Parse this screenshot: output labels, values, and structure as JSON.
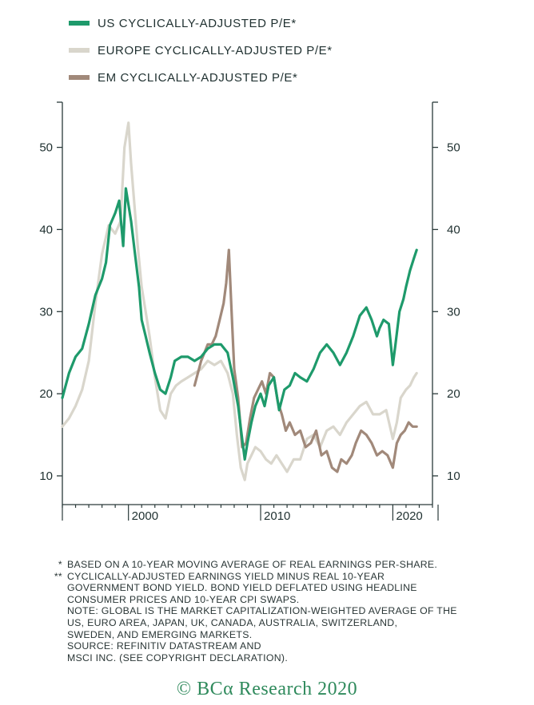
{
  "legend": [
    {
      "label": "US CYCLICALLY-ADJUSTED P/E*",
      "color": "#1e9a6b"
    },
    {
      "label": "EUROPE CYCLICALLY-ADJUSTED P/E*",
      "color": "#d9d6cc"
    },
    {
      "label": "EM CYCLICALLY-ADJUSTED P/E*",
      "color": "#a1897a"
    }
  ],
  "footnotes": [
    {
      "marker": "*",
      "text": "BASED ON A 10-YEAR MOVING AVERAGE OF REAL EARNINGS PER-SHARE."
    },
    {
      "marker": "**",
      "text": "CYCLICALLY-ADJUSTED EARNINGS YIELD MINUS REAL 10-YEAR\nGOVERNMENT BOND YIELD. BOND YIELD DEFLATED USING HEADLINE\nCONSUMER PRICES AND 10-YEAR CPI SWAPS.\nNOTE: GLOBAL IS THE MARKET CAPITALIZATION-WEIGHTED AVERAGE OF THE\nUS, EURO AREA, JAPAN, UK, CANADA, AUSTRALIA, SWITZERLAND,\nSWEDEN, AND EMERGING MARKETS.\nSOURCE: REFINITIV DATASTREAM AND\nMSCI INC. (SEE COPYRIGHT DECLARATION)."
    }
  ],
  "copyright": "© BCα Research 2020",
  "chart_data": {
    "type": "line",
    "title": "",
    "xlabel": "",
    "ylabel": "",
    "xlim": [
      1995.0,
      2023.0
    ],
    "ylim": [
      6.5,
      55.5
    ],
    "x_ticks": [
      2000,
      2010,
      2020
    ],
    "x_tick_labels": [
      "2000",
      "2010",
      "2020"
    ],
    "y_ticks": [
      10,
      20,
      30,
      40,
      50
    ],
    "y_tick_labels": [
      "10",
      "20",
      "30",
      "40",
      "50"
    ],
    "grid": false,
    "legend_position": "top-left",
    "series": [
      {
        "name": "US CYCLICALLY-ADJUSTED P/E*",
        "color": "#1e9a6b",
        "x": [
          1995.0,
          1995.5,
          1996.0,
          1996.5,
          1997.0,
          1997.5,
          1998.0,
          1998.3,
          1998.6,
          1999.0,
          1999.3,
          1999.6,
          1999.8,
          2000.0,
          2000.2,
          2000.5,
          2000.8,
          2001.0,
          2001.3,
          2001.6,
          2002.0,
          2002.4,
          2002.8,
          2003.2,
          2003.5,
          2004.0,
          2004.5,
          2005.0,
          2005.5,
          2006.0,
          2006.5,
          2007.0,
          2007.5,
          2007.9,
          2008.3,
          2008.6,
          2008.8,
          2009.0,
          2009.3,
          2009.6,
          2010.0,
          2010.3,
          2010.6,
          2011.0,
          2011.4,
          2011.8,
          2012.2,
          2012.6,
          2013.0,
          2013.5,
          2014.0,
          2014.5,
          2015.0,
          2015.5,
          2016.0,
          2016.5,
          2017.0,
          2017.5,
          2018.0,
          2018.4,
          2018.8,
          2019.0,
          2019.3,
          2019.7,
          2020.0,
          2020.2,
          2020.5,
          2020.8,
          2021.0,
          2021.3,
          2021.6,
          2021.8
        ],
        "values": [
          19.5,
          22.5,
          24.5,
          25.5,
          28.5,
          32.0,
          34.0,
          36.0,
          40.5,
          42.0,
          43.5,
          38.0,
          45.0,
          43.0,
          41.0,
          37.0,
          33.0,
          29.0,
          27.0,
          25.0,
          22.5,
          20.5,
          20.0,
          22.0,
          24.0,
          24.5,
          24.5,
          24.0,
          24.5,
          25.5,
          26.0,
          26.0,
          25.0,
          22.0,
          18.5,
          14.5,
          12.0,
          14.0,
          16.5,
          18.5,
          20.0,
          18.5,
          21.0,
          22.0,
          18.0,
          20.5,
          21.0,
          22.5,
          22.0,
          21.5,
          23.0,
          25.0,
          26.0,
          25.0,
          23.5,
          25.0,
          27.0,
          29.5,
          30.5,
          29.0,
          27.0,
          28.0,
          29.0,
          28.5,
          23.5,
          26.0,
          30.0,
          31.5,
          33.0,
          35.0,
          36.5,
          37.5
        ]
      },
      {
        "name": "EUROPE CYCLICALLY-ADJUSTED P/E*",
        "color": "#d9d6cc",
        "x": [
          1995.0,
          1995.5,
          1996.0,
          1996.5,
          1997.0,
          1997.5,
          1998.0,
          1998.5,
          1999.0,
          1999.4,
          1999.7,
          2000.0,
          2000.2,
          2000.4,
          2000.7,
          2001.0,
          2001.3,
          2001.6,
          2002.0,
          2002.4,
          2002.8,
          2003.2,
          2003.6,
          2004.0,
          2004.5,
          2005.0,
          2005.5,
          2006.0,
          2006.5,
          2007.0,
          2007.5,
          2007.9,
          2008.2,
          2008.5,
          2008.8,
          2009.0,
          2009.3,
          2009.6,
          2010.0,
          2010.4,
          2010.8,
          2011.2,
          2011.6,
          2012.0,
          2012.5,
          2013.0,
          2013.5,
          2014.0,
          2014.5,
          2015.0,
          2015.5,
          2016.0,
          2016.5,
          2017.0,
          2017.5,
          2018.0,
          2018.5,
          2019.0,
          2019.5,
          2020.0,
          2020.3,
          2020.6,
          2021.0,
          2021.3,
          2021.6,
          2021.8
        ],
        "values": [
          16.0,
          17.0,
          18.5,
          20.5,
          24.0,
          31.0,
          37.0,
          40.5,
          39.5,
          41.0,
          50.0,
          53.0,
          48.0,
          44.0,
          38.0,
          33.0,
          30.0,
          27.0,
          22.0,
          18.0,
          17.0,
          20.0,
          21.0,
          21.5,
          22.0,
          22.5,
          23.0,
          24.0,
          23.5,
          24.0,
          22.5,
          20.0,
          15.0,
          11.0,
          9.5,
          11.5,
          12.5,
          13.5,
          13.0,
          12.0,
          11.5,
          12.5,
          11.5,
          10.5,
          12.0,
          12.0,
          14.5,
          15.0,
          13.5,
          15.5,
          16.0,
          15.0,
          16.5,
          17.5,
          18.5,
          19.0,
          17.5,
          17.5,
          18.0,
          14.5,
          16.5,
          19.5,
          20.5,
          21.0,
          22.0,
          22.5
        ]
      },
      {
        "name": "EM CYCLICALLY-ADJUSTED P/E*",
        "color": "#a1897a",
        "x": [
          2005.0,
          2005.5,
          2006.0,
          2006.3,
          2006.6,
          2006.9,
          2007.2,
          2007.4,
          2007.6,
          2007.8,
          2008.0,
          2008.3,
          2008.6,
          2008.9,
          2009.2,
          2009.5,
          2009.8,
          2010.1,
          2010.4,
          2010.7,
          2011.0,
          2011.3,
          2011.6,
          2011.9,
          2012.2,
          2012.6,
          2013.0,
          2013.4,
          2013.8,
          2014.2,
          2014.6,
          2015.0,
          2015.4,
          2015.8,
          2016.1,
          2016.5,
          2016.9,
          2017.2,
          2017.6,
          2018.0,
          2018.4,
          2018.8,
          2019.2,
          2019.6,
          2020.0,
          2020.3,
          2020.6,
          2020.9,
          2021.2,
          2021.5,
          2021.8
        ],
        "values": [
          21.0,
          24.0,
          26.0,
          26.0,
          27.0,
          29.0,
          31.0,
          33.5,
          37.5,
          30.0,
          23.0,
          19.5,
          13.5,
          14.0,
          17.0,
          19.5,
          20.5,
          21.5,
          20.0,
          22.5,
          22.0,
          19.0,
          17.5,
          15.5,
          16.5,
          15.0,
          15.5,
          13.5,
          14.0,
          15.5,
          12.5,
          13.0,
          11.0,
          10.5,
          12.0,
          11.5,
          12.5,
          14.0,
          15.5,
          15.0,
          14.0,
          12.5,
          13.0,
          12.5,
          11.0,
          14.0,
          15.0,
          15.5,
          16.5,
          16.0,
          16.0
        ]
      }
    ]
  }
}
